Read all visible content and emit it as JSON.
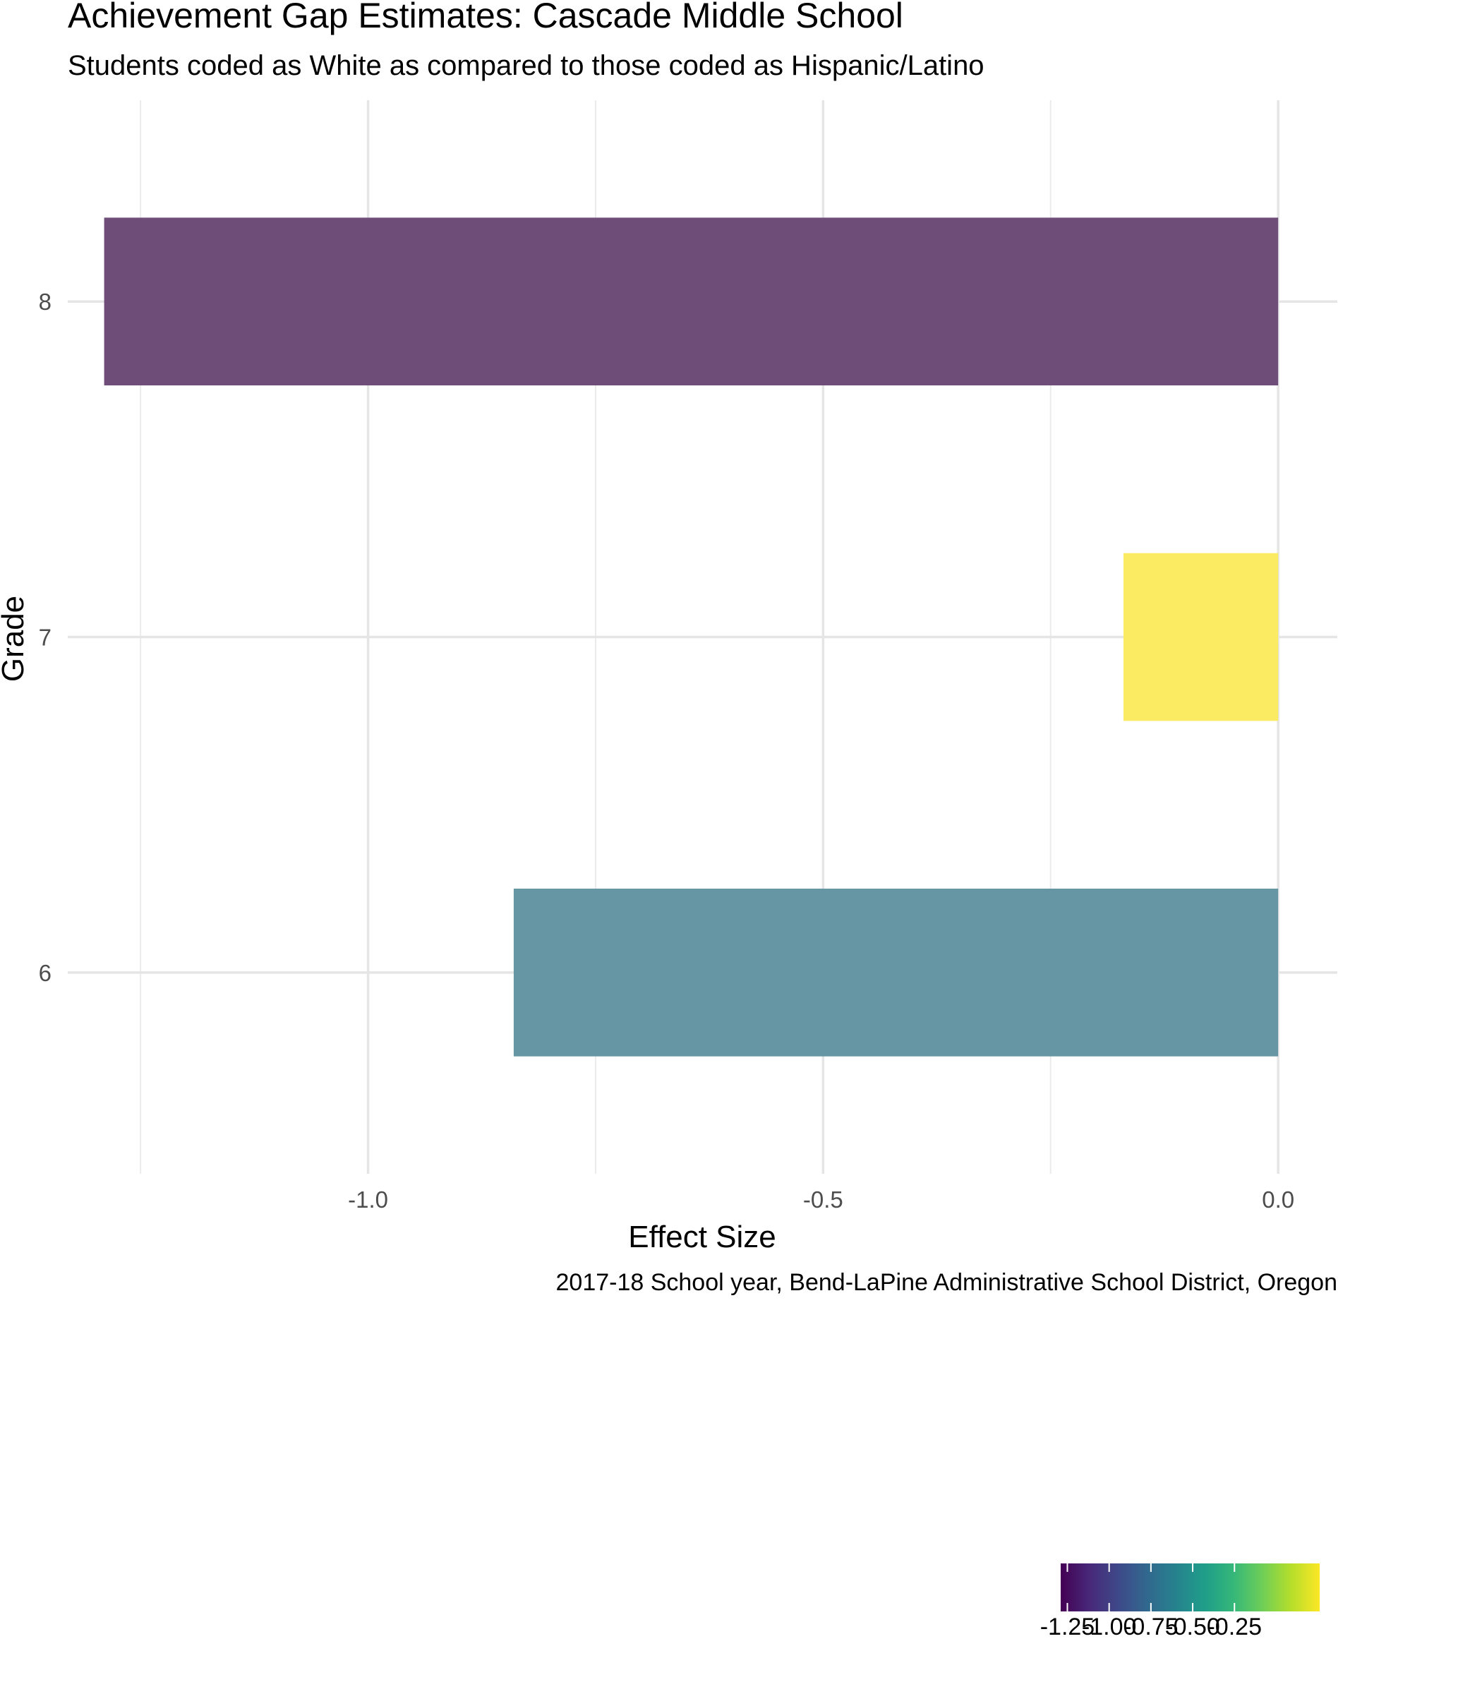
{
  "chart_data": {
    "type": "bar",
    "orientation": "horizontal",
    "title": "Achievement Gap Estimates: Cascade Middle School",
    "subtitle": "Students coded as White as compared to those coded as Hispanic/Latino",
    "caption": "2017-18 School year, Bend-LaPine Administrative School District, Oregon",
    "xlabel": "Effect Size",
    "ylabel": "Grade",
    "categories": [
      "6",
      "7",
      "8"
    ],
    "values": [
      -0.84,
      -0.17,
      -1.29
    ],
    "xlim": [
      -1.33,
      0.065
    ],
    "x_ticks": [
      -1.0,
      -0.5,
      0.0
    ],
    "x_tick_labels": [
      "-1.0",
      "-0.5",
      "0.0"
    ],
    "grid": true,
    "fill_scale": "viridis",
    "fill_limits": [
      -1.29,
      0.26
    ],
    "legend": {
      "placement": "bottom-right",
      "breaks": [
        -1.25,
        -1.0,
        -0.75,
        -0.5,
        -0.25
      ],
      "labels": [
        "-1.25",
        "-1.00",
        "-0.75",
        "-0.50",
        "-0.25"
      ]
    },
    "colors": {
      "grade_6": "#6696a3",
      "grade_7": "#fbeb62",
      "grade_8": "#6e4d78"
    }
  }
}
